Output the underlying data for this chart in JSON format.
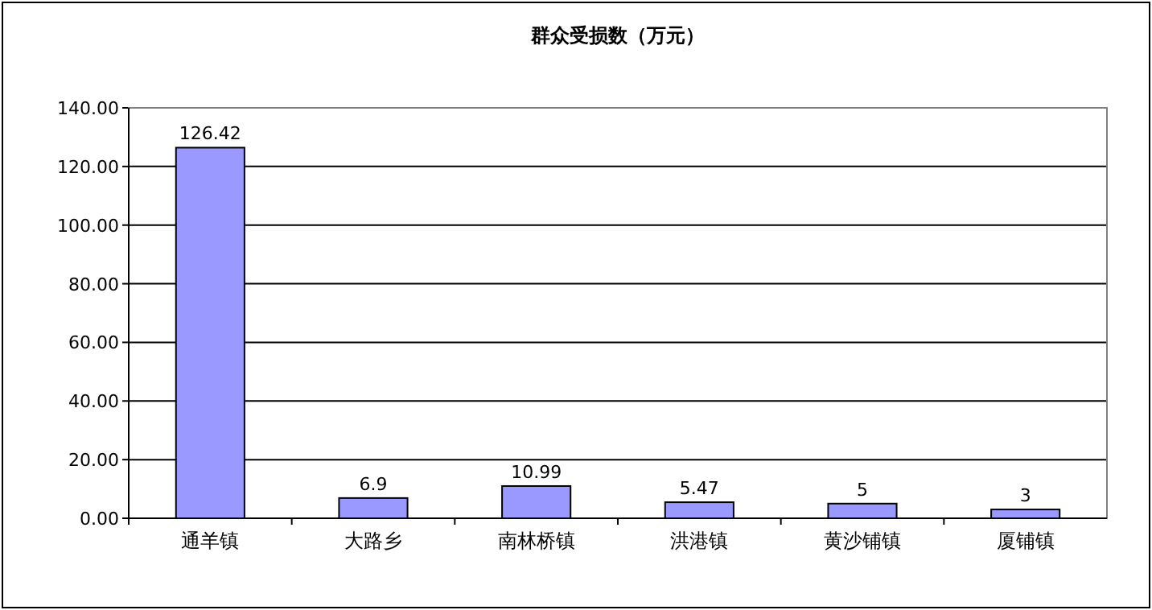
{
  "chart_data": {
    "type": "bar",
    "title": "群众受损数（万元）",
    "categories": [
      "通羊镇",
      "大路乡",
      "南林桥镇",
      "洪港镇",
      "黄沙铺镇",
      "厦铺镇"
    ],
    "values": [
      126.42,
      6.9,
      10.99,
      5.47,
      5,
      3
    ],
    "color": "#9999ff",
    "ylim": [
      0,
      140
    ],
    "yticks": [
      {
        "value": 0,
        "label": "0.00"
      },
      {
        "value": 20,
        "label": "20.00"
      },
      {
        "value": 40,
        "label": "40.00"
      },
      {
        "value": 60,
        "label": "60.00"
      },
      {
        "value": 80,
        "label": "80.00"
      },
      {
        "value": 100,
        "label": "100.00"
      },
      {
        "value": 120,
        "label": "120.00"
      },
      {
        "value": 140,
        "label": "140.00"
      }
    ],
    "grid": "y",
    "data_labels": true
  }
}
